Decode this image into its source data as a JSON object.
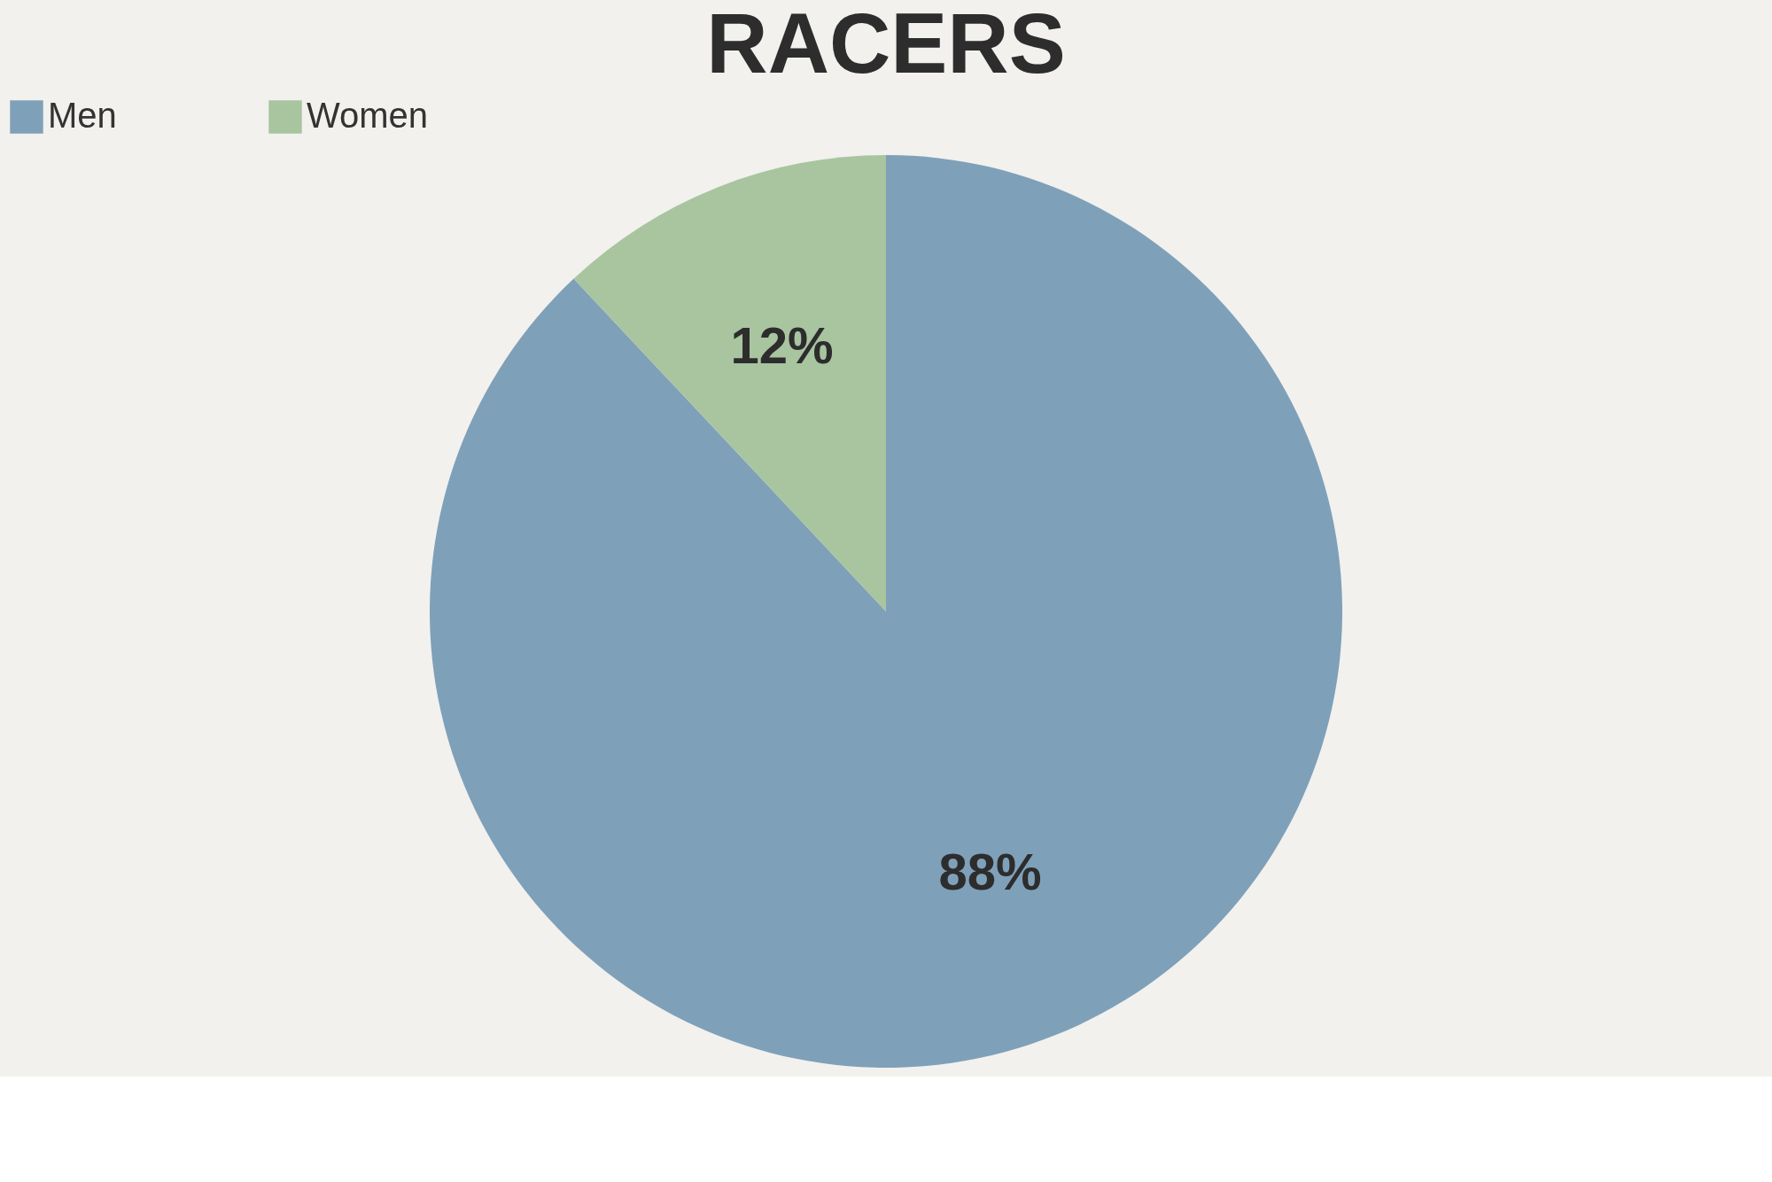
{
  "chart_data": {
    "type": "pie",
    "title": "RACERS",
    "categories": [
      "Men",
      "Women"
    ],
    "values": [
      88,
      12
    ],
    "colors": [
      "#7fa0b9",
      "#a8c5a0"
    ],
    "value_labels": [
      "88%",
      "12%"
    ],
    "legend": "top"
  }
}
